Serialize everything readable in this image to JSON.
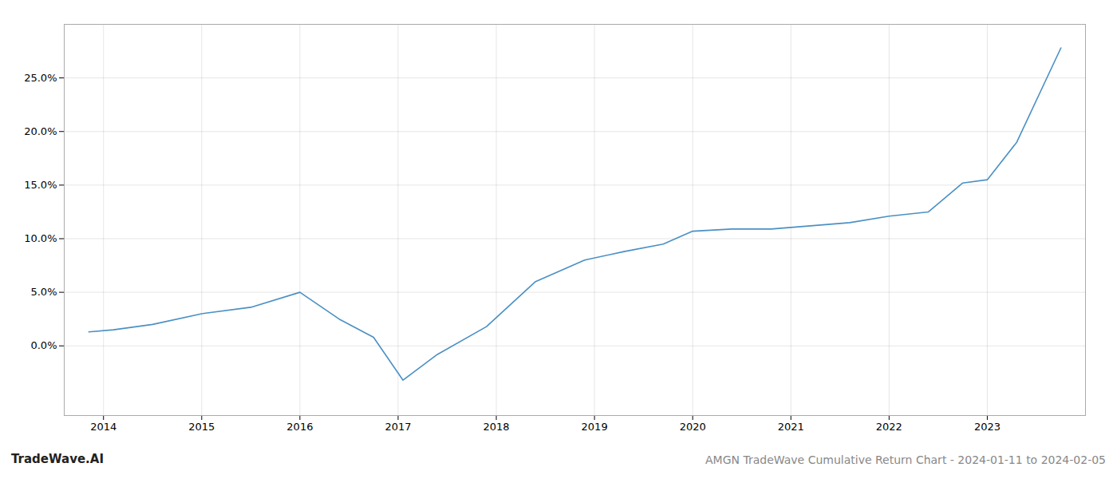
{
  "chart_data": {
    "type": "line",
    "title": "AMGN TradeWave Cumulative Return Chart - 2024-01-11 to 2024-02-05",
    "annotations": [
      "TradeWave.AI"
    ],
    "x": [
      2013.85,
      2014.1,
      2014.5,
      2015.0,
      2015.5,
      2016.0,
      2016.4,
      2016.75,
      2017.05,
      2017.4,
      2017.9,
      2018.4,
      2018.9,
      2019.3,
      2019.7,
      2020.0,
      2020.4,
      2020.8,
      2021.2,
      2021.6,
      2022.0,
      2022.4,
      2022.75,
      2023.0,
      2023.3,
      2023.75
    ],
    "values": [
      0.013,
      0.015,
      0.02,
      0.03,
      0.036,
      0.05,
      0.025,
      0.008,
      -0.032,
      -0.008,
      0.018,
      0.06,
      0.08,
      0.088,
      0.095,
      0.107,
      0.109,
      0.109,
      0.112,
      0.115,
      0.121,
      0.125,
      0.152,
      0.155,
      0.19,
      0.278
    ],
    "color": "#4a90c4",
    "xlim": [
      2013.6,
      2024.0
    ],
    "xticks": [
      2014,
      2015,
      2016,
      2017,
      2018,
      2019,
      2020,
      2021,
      2022,
      2023
    ],
    "ylim": [
      -0.065,
      0.3
    ],
    "yticks": [
      {
        "value": 0.0,
        "label": "0.0%"
      },
      {
        "value": 0.05,
        "label": "5.0%"
      },
      {
        "value": 0.1,
        "label": "10.0%"
      },
      {
        "value": 0.15,
        "label": "15.0%"
      },
      {
        "value": 0.2,
        "label": "20.0%"
      },
      {
        "value": 0.25,
        "label": "25.0%"
      }
    ],
    "grid": true
  }
}
